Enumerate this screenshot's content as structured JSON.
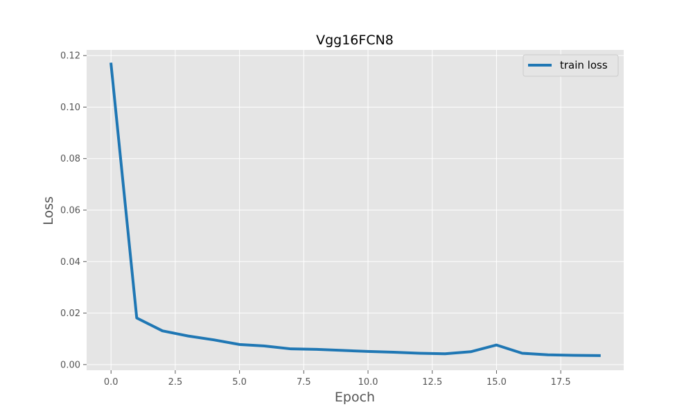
{
  "chart_data": {
    "type": "line",
    "title": "Vgg16FCN8",
    "xlabel": "Epoch",
    "ylabel": "Loss",
    "xlim": [
      -0.95,
      19.95
    ],
    "ylim": [
      -0.0022,
      0.1222
    ],
    "x_ticks": [
      0.0,
      2.5,
      5.0,
      7.5,
      10.0,
      12.5,
      15.0,
      17.5
    ],
    "x_tick_labels": [
      "0.0",
      "2.5",
      "5.0",
      "7.5",
      "10.0",
      "12.5",
      "15.0",
      "17.5"
    ],
    "y_ticks": [
      0.0,
      0.02,
      0.04,
      0.06,
      0.08,
      0.1,
      0.12
    ],
    "y_tick_labels": [
      "0.00",
      "0.02",
      "0.04",
      "0.06",
      "0.08",
      "0.10",
      "0.12"
    ],
    "grid": true,
    "legend": "top-right",
    "series": [
      {
        "name": "train loss",
        "color": "#1f77b4",
        "x": [
          0,
          1,
          2,
          3,
          4,
          5,
          6,
          7,
          8,
          9,
          10,
          11,
          12,
          13,
          14,
          15,
          16,
          17,
          18,
          19
        ],
        "y": [
          0.1167,
          0.0181,
          0.0131,
          0.0111,
          0.0096,
          0.0078,
          0.0072,
          0.0061,
          0.0059,
          0.0055,
          0.0051,
          0.0048,
          0.0044,
          0.0042,
          0.005,
          0.0076,
          0.0044,
          0.0038,
          0.0036,
          0.0035
        ]
      }
    ]
  }
}
